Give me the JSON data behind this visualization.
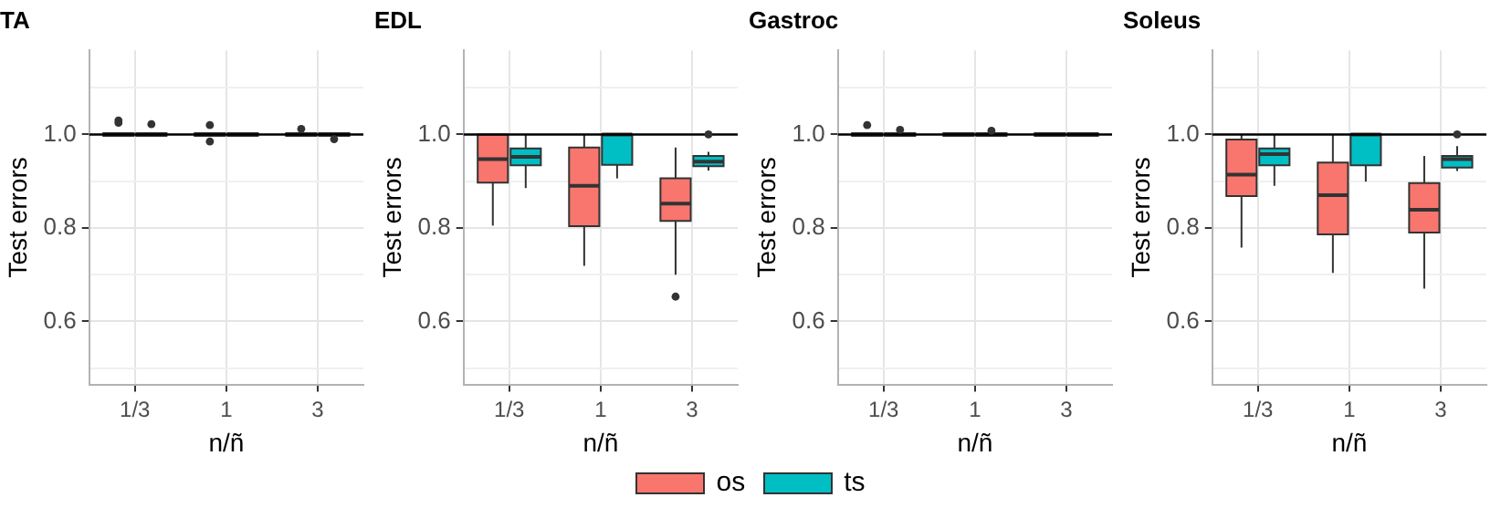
{
  "chart_data": [
    {
      "type": "box",
      "title": "TA",
      "xlabel": "n/ñ",
      "ylabel": "Test errors",
      "categories": [
        "1/3",
        "1",
        "3"
      ],
      "ylim": [
        0.465,
        1.18
      ],
      "yticks": [
        {
          "value": 0.5,
          "label": null
        },
        {
          "value": 0.6,
          "label": "0.6"
        },
        {
          "value": 0.7,
          "label": null
        },
        {
          "value": 0.8,
          "label": "0.8"
        },
        {
          "value": 0.9,
          "label": null
        },
        {
          "value": 1.0,
          "label": "1.0"
        },
        {
          "value": 1.1,
          "label": null
        }
      ],
      "grid": true,
      "legend": "bottom",
      "ref_lines": [
        {
          "axis": "y",
          "value": 1.0,
          "color": "#000000"
        }
      ],
      "series": [
        {
          "name": "os",
          "color": "#f8766d",
          "boxes": [
            {
              "low": 0.997,
              "q1": 0.997,
              "median": 1.0,
              "q3": 1.003,
              "high": 1.003,
              "outliers": [
                1.025,
                1.03
              ]
            },
            {
              "low": 0.997,
              "q1": 0.997,
              "median": 1.0,
              "q3": 1.003,
              "high": 1.003,
              "outliers": [
                1.02,
                0.985
              ]
            },
            {
              "low": 0.997,
              "q1": 0.997,
              "median": 1.0,
              "q3": 1.003,
              "high": 1.003,
              "outliers": [
                1.012
              ]
            }
          ]
        },
        {
          "name": "ts",
          "color": "#00bfc4",
          "boxes": [
            {
              "low": 0.995,
              "q1": 0.997,
              "median": 1.0,
              "q3": 1.003,
              "high": 1.005,
              "outliers": [
                1.022
              ]
            },
            {
              "low": 0.997,
              "q1": 0.997,
              "median": 1.0,
              "q3": 1.003,
              "high": 1.003
            },
            {
              "low": 0.997,
              "q1": 0.997,
              "median": 1.0,
              "q3": 1.003,
              "high": 1.003,
              "outliers": [
                0.99
              ]
            }
          ]
        }
      ]
    },
    {
      "type": "box",
      "title": "EDL",
      "xlabel": "n/ñ",
      "ylabel": "Test errors",
      "categories": [
        "1/3",
        "1",
        "3"
      ],
      "ylim": [
        0.465,
        1.18
      ],
      "yticks": [
        {
          "value": 0.5,
          "label": null
        },
        {
          "value": 0.6,
          "label": "0.6"
        },
        {
          "value": 0.7,
          "label": null
        },
        {
          "value": 0.8,
          "label": "0.8"
        },
        {
          "value": 0.9,
          "label": null
        },
        {
          "value": 1.0,
          "label": "1.0"
        },
        {
          "value": 1.1,
          "label": null
        }
      ],
      "grid": true,
      "legend": "bottom",
      "ref_lines": [
        {
          "axis": "y",
          "value": 1.0,
          "color": "#000000"
        }
      ],
      "series": [
        {
          "name": "os",
          "color": "#f8766d",
          "boxes": [
            {
              "low": 0.805,
              "q1": 0.897,
              "median": 0.947,
              "q3": 1.0,
              "high": 1.0
            },
            {
              "low": 0.719,
              "q1": 0.804,
              "median": 0.89,
              "q3": 0.972,
              "high": 1.0
            },
            {
              "low": 0.7,
              "q1": 0.815,
              "median": 0.852,
              "q3": 0.906,
              "high": 0.972,
              "outliers": [
                0.653
              ]
            }
          ]
        },
        {
          "name": "ts",
          "color": "#00bfc4",
          "boxes": [
            {
              "low": 0.885,
              "q1": 0.934,
              "median": 0.952,
              "q3": 0.97,
              "high": 1.0
            },
            {
              "low": 0.906,
              "q1": 0.935,
              "median": 1.0,
              "q3": 1.0,
              "high": 1.0
            },
            {
              "low": 0.923,
              "q1": 0.932,
              "median": 0.942,
              "q3": 0.954,
              "high": 0.963,
              "outliers": [
                1.0
              ]
            }
          ]
        }
      ]
    },
    {
      "type": "box",
      "title": "Gastroc",
      "xlabel": "n/ñ",
      "ylabel": "Test errors",
      "categories": [
        "1/3",
        "1",
        "3"
      ],
      "ylim": [
        0.465,
        1.18
      ],
      "yticks": [
        {
          "value": 0.5,
          "label": null
        },
        {
          "value": 0.6,
          "label": "0.6"
        },
        {
          "value": 0.7,
          "label": null
        },
        {
          "value": 0.8,
          "label": "0.8"
        },
        {
          "value": 0.9,
          "label": null
        },
        {
          "value": 1.0,
          "label": "1.0"
        },
        {
          "value": 1.1,
          "label": null
        }
      ],
      "grid": true,
      "legend": "bottom",
      "ref_lines": [
        {
          "axis": "y",
          "value": 1.0,
          "color": "#000000"
        }
      ],
      "series": [
        {
          "name": "os",
          "color": "#f8766d",
          "boxes": [
            {
              "low": 0.997,
              "q1": 0.997,
              "median": 1.0,
              "q3": 1.003,
              "high": 1.003,
              "outliers": [
                1.02
              ]
            },
            {
              "low": 0.997,
              "q1": 0.997,
              "median": 1.0,
              "q3": 1.003,
              "high": 1.003
            },
            {
              "low": 0.997,
              "q1": 0.997,
              "median": 1.0,
              "q3": 1.003,
              "high": 1.003
            }
          ]
        },
        {
          "name": "ts",
          "color": "#00bfc4",
          "boxes": [
            {
              "low": 0.997,
              "q1": 0.997,
              "median": 1.0,
              "q3": 1.003,
              "high": 1.003,
              "outliers": [
                1.01
              ]
            },
            {
              "low": 0.997,
              "q1": 0.997,
              "median": 1.0,
              "q3": 1.003,
              "high": 1.003,
              "outliers": [
                1.008
              ]
            },
            {
              "low": 0.997,
              "q1": 0.997,
              "median": 1.0,
              "q3": 1.003,
              "high": 1.003
            }
          ]
        }
      ]
    },
    {
      "type": "box",
      "title": "Soleus",
      "xlabel": "n/ñ",
      "ylabel": "Test errors",
      "categories": [
        "1/3",
        "1",
        "3"
      ],
      "ylim": [
        0.465,
        1.18
      ],
      "yticks": [
        {
          "value": 0.5,
          "label": null
        },
        {
          "value": 0.6,
          "label": "0.6"
        },
        {
          "value": 0.7,
          "label": null
        },
        {
          "value": 0.8,
          "label": "0.8"
        },
        {
          "value": 0.9,
          "label": null
        },
        {
          "value": 1.0,
          "label": "1.0"
        },
        {
          "value": 1.1,
          "label": null
        }
      ],
      "grid": true,
      "legend": "bottom",
      "ref_lines": [
        {
          "axis": "y",
          "value": 1.0,
          "color": "#000000"
        }
      ],
      "series": [
        {
          "name": "os",
          "color": "#f8766d",
          "boxes": [
            {
              "low": 0.758,
              "q1": 0.868,
              "median": 0.914,
              "q3": 0.989,
              "high": 1.0
            },
            {
              "low": 0.704,
              "q1": 0.786,
              "median": 0.87,
              "q3": 0.94,
              "high": 1.0
            },
            {
              "low": 0.67,
              "q1": 0.79,
              "median": 0.839,
              "q3": 0.896,
              "high": 0.954
            }
          ]
        },
        {
          "name": "ts",
          "color": "#00bfc4",
          "boxes": [
            {
              "low": 0.89,
              "q1": 0.934,
              "median": 0.958,
              "q3": 0.97,
              "high": 1.0
            },
            {
              "low": 0.899,
              "q1": 0.934,
              "median": 1.0,
              "q3": 1.0,
              "high": 1.0
            },
            {
              "low": 0.922,
              "q1": 0.929,
              "median": 0.947,
              "q3": 0.954,
              "high": 0.975,
              "outliers": [
                1.0
              ]
            }
          ]
        }
      ]
    }
  ]
}
